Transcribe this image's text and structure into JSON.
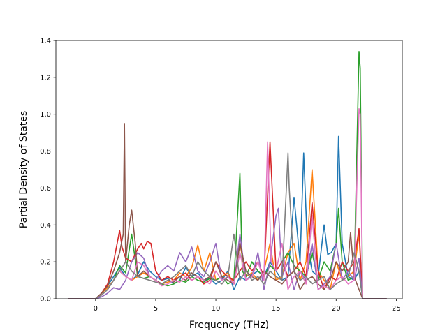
{
  "chart_data": {
    "type": "line",
    "title": "",
    "xlabel": "Frequency (THz)",
    "ylabel": "Partial Density of States",
    "xlim": [
      -3.3,
      25.5
    ],
    "ylim": [
      0,
      1.4
    ],
    "xticks": [
      0,
      5,
      10,
      15,
      20,
      25
    ],
    "xtick_labels": [
      "0",
      "5",
      "10",
      "15",
      "20",
      "25"
    ],
    "yticks": [
      0.0,
      0.2,
      0.4,
      0.6,
      0.8,
      1.0,
      1.2,
      1.4
    ],
    "ytick_labels": [
      "0.0",
      "0.2",
      "0.4",
      "0.6",
      "0.8",
      "1.0",
      "1.2",
      "1.4"
    ],
    "grid": false,
    "legend": false,
    "series": [
      {
        "color": "#1f77b4",
        "x": [
          -2.3,
          0.0,
          0.5,
          1.0,
          1.5,
          2.0,
          2.5,
          3.0,
          3.5,
          4.0,
          4.5,
          5.0,
          5.5,
          6.0,
          6.5,
          7.0,
          7.5,
          8.0,
          8.5,
          9.0,
          9.5,
          10.0,
          10.5,
          11.0,
          11.5,
          12.0,
          12.5,
          13.0,
          13.5,
          14.0,
          14.5,
          15.0,
          15.5,
          16.0,
          16.5,
          17.0,
          17.3,
          17.6,
          18.0,
          18.5,
          19.0,
          19.3,
          19.6,
          20.0,
          20.2,
          20.5,
          21.0,
          21.5,
          21.9,
          22.2,
          24.2
        ],
        "y": [
          0,
          0,
          0.03,
          0.07,
          0.12,
          0.17,
          0.12,
          0.1,
          0.13,
          0.2,
          0.15,
          0.12,
          0.1,
          0.11,
          0.08,
          0.1,
          0.17,
          0.12,
          0.14,
          0.1,
          0.11,
          0.08,
          0.1,
          0.15,
          0.05,
          0.12,
          0.1,
          0.13,
          0.15,
          0.12,
          0.2,
          0.15,
          0.1,
          0.12,
          0.55,
          0.2,
          0.79,
          0.3,
          0.15,
          0.12,
          0.4,
          0.24,
          0.25,
          0.3,
          0.88,
          0.3,
          0.12,
          0.1,
          0.15,
          0,
          0
        ]
      },
      {
        "color": "#ff7f0e",
        "x": [
          -2.3,
          0.0,
          0.5,
          1.0,
          1.5,
          2.0,
          2.5,
          3.0,
          3.5,
          4.0,
          4.5,
          5.0,
          5.5,
          6.0,
          6.5,
          7.0,
          7.5,
          8.0,
          8.5,
          9.0,
          9.5,
          10.0,
          10.5,
          11.0,
          11.5,
          12.0,
          12.5,
          13.0,
          13.5,
          14.0,
          14.5,
          15.0,
          15.5,
          16.0,
          16.5,
          17.0,
          17.5,
          18.0,
          18.5,
          19.0,
          19.5,
          20.0,
          20.5,
          21.0,
          21.5,
          21.9,
          22.2,
          24.2
        ],
        "y": [
          0,
          0,
          0.03,
          0.06,
          0.1,
          0.15,
          0.12,
          0.1,
          0.12,
          0.14,
          0.12,
          0.1,
          0.08,
          0.09,
          0.1,
          0.14,
          0.12,
          0.17,
          0.29,
          0.15,
          0.25,
          0.1,
          0.12,
          0.14,
          0.08,
          0.3,
          0.12,
          0.14,
          0.1,
          0.15,
          0.3,
          0.1,
          0.12,
          0.25,
          0.3,
          0.1,
          0.2,
          0.7,
          0.15,
          0.1,
          0.05,
          0.2,
          0.1,
          0.12,
          0.15,
          0.35,
          0,
          0
        ]
      },
      {
        "color": "#2ca02c",
        "x": [
          -2.3,
          0.0,
          0.5,
          1.0,
          1.5,
          2.0,
          2.5,
          3.0,
          3.5,
          4.0,
          4.5,
          5.0,
          5.5,
          6.0,
          6.5,
          7.0,
          7.5,
          8.0,
          8.5,
          9.0,
          9.5,
          10.0,
          10.5,
          11.0,
          11.5,
          12.0,
          12.2,
          12.5,
          13.0,
          13.5,
          14.0,
          14.5,
          15.0,
          15.5,
          16.0,
          16.5,
          17.0,
          17.5,
          18.0,
          18.5,
          19.0,
          19.5,
          20.0,
          20.2,
          20.5,
          21.0,
          21.5,
          21.9,
          22.0,
          22.2,
          24.2
        ],
        "y": [
          0,
          0,
          0.02,
          0.05,
          0.1,
          0.18,
          0.14,
          0.35,
          0.12,
          0.11,
          0.12,
          0.1,
          0.08,
          0.07,
          0.08,
          0.1,
          0.09,
          0.12,
          0.1,
          0.09,
          0.11,
          0.1,
          0.12,
          0.08,
          0.1,
          0.68,
          0.15,
          0.12,
          0.2,
          0.15,
          0.12,
          0.18,
          0.15,
          0.2,
          0.25,
          0.18,
          0.15,
          0.12,
          0.25,
          0.1,
          0.2,
          0.15,
          0.3,
          0.49,
          0.2,
          0.1,
          0.12,
          1.34,
          1.25,
          0,
          0
        ]
      },
      {
        "color": "#d62728",
        "x": [
          -2.3,
          0.0,
          0.5,
          1.0,
          1.5,
          2.0,
          2.2,
          2.5,
          3.0,
          3.5,
          3.8,
          4.0,
          4.3,
          4.6,
          5.0,
          5.5,
          6.0,
          6.5,
          7.0,
          7.5,
          8.0,
          8.5,
          9.0,
          9.5,
          10.0,
          10.5,
          11.0,
          11.5,
          12.0,
          12.5,
          13.0,
          13.5,
          14.0,
          14.5,
          15.0,
          15.5,
          16.0,
          16.5,
          17.0,
          17.5,
          18.0,
          18.5,
          19.0,
          19.5,
          20.0,
          20.5,
          21.0,
          21.5,
          21.9,
          22.2,
          24.2
        ],
        "y": [
          0,
          0,
          0.03,
          0.08,
          0.2,
          0.37,
          0.28,
          0.22,
          0.2,
          0.27,
          0.3,
          0.27,
          0.31,
          0.3,
          0.15,
          0.1,
          0.12,
          0.1,
          0.12,
          0.14,
          0.1,
          0.12,
          0.08,
          0.1,
          0.2,
          0.15,
          0.12,
          0.1,
          0.15,
          0.2,
          0.15,
          0.2,
          0.12,
          0.85,
          0.15,
          0.2,
          0.12,
          0.15,
          0.2,
          0.12,
          0.52,
          0.15,
          0.05,
          0.12,
          0.1,
          0.2,
          0.15,
          0.2,
          0.38,
          0,
          0
        ]
      },
      {
        "color": "#9467bd",
        "x": [
          -2.3,
          0.0,
          0.5,
          1.0,
          1.5,
          2.0,
          2.5,
          3.0,
          3.5,
          4.0,
          4.5,
          5.0,
          5.5,
          6.0,
          6.5,
          7.0,
          7.5,
          8.0,
          8.5,
          9.0,
          9.5,
          10.0,
          10.5,
          11.0,
          11.5,
          12.0,
          12.5,
          13.0,
          13.5,
          14.0,
          14.5,
          15.0,
          15.2,
          15.5,
          16.0,
          16.5,
          17.0,
          17.5,
          18.0,
          18.5,
          19.0,
          19.5,
          20.0,
          20.5,
          21.0,
          21.5,
          21.9,
          22.2,
          24.2
        ],
        "y": [
          0,
          0,
          0.01,
          0.03,
          0.06,
          0.05,
          0.1,
          0.2,
          0.25,
          0.22,
          0.12,
          0.1,
          0.15,
          0.18,
          0.15,
          0.25,
          0.2,
          0.28,
          0.15,
          0.12,
          0.2,
          0.3,
          0.1,
          0.12,
          0.08,
          0.35,
          0.1,
          0.12,
          0.25,
          0.05,
          0.2,
          0.45,
          0.49,
          0.12,
          0.2,
          0.05,
          0.15,
          0.1,
          0.3,
          0.05,
          0.08,
          0.12,
          0.3,
          0.1,
          0.15,
          0.1,
          0.22,
          0,
          0
        ]
      },
      {
        "color": "#8c564b",
        "x": [
          -2.3,
          0.0,
          0.5,
          1.0,
          1.5,
          2.0,
          2.3,
          2.4,
          2.5,
          2.8,
          3.0,
          3.3,
          3.5,
          4.0,
          4.5,
          5.0,
          5.5,
          6.0,
          6.5,
          7.0,
          7.5,
          8.0,
          8.5,
          9.0,
          9.5,
          10.0,
          10.5,
          11.0,
          11.5,
          12.0,
          12.5,
          13.0,
          13.5,
          14.0,
          14.5,
          15.0,
          15.5,
          16.0,
          16.5,
          17.0,
          17.5,
          18.0,
          18.5,
          19.0,
          19.5,
          20.0,
          20.5,
          21.0,
          21.2,
          21.5,
          21.9,
          22.2,
          24.2
        ],
        "y": [
          0,
          0,
          0.03,
          0.07,
          0.15,
          0.25,
          0.35,
          0.95,
          0.2,
          0.4,
          0.48,
          0.3,
          0.12,
          0.15,
          0.12,
          0.1,
          0.08,
          0.1,
          0.09,
          0.12,
          0.1,
          0.14,
          0.12,
          0.1,
          0.12,
          0.2,
          0.12,
          0.1,
          0.08,
          0.3,
          0.15,
          0.12,
          0.1,
          0.15,
          0.12,
          0.1,
          0.08,
          0.12,
          0.15,
          0.05,
          0.1,
          0.12,
          0.08,
          0.05,
          0.1,
          0.2,
          0.15,
          0.2,
          0.36,
          0.12,
          0.05,
          0,
          0
        ]
      },
      {
        "color": "#e377c2",
        "x": [
          -2.3,
          0.0,
          0.5,
          1.0,
          1.5,
          2.0,
          2.5,
          3.0,
          3.5,
          4.0,
          4.5,
          5.0,
          5.5,
          6.0,
          6.5,
          7.0,
          7.5,
          8.0,
          8.5,
          9.0,
          9.5,
          10.0,
          10.5,
          11.0,
          11.5,
          12.0,
          12.5,
          13.0,
          13.5,
          14.0,
          14.3,
          14.6,
          15.0,
          15.5,
          16.0,
          16.5,
          17.0,
          17.5,
          18.0,
          18.5,
          19.0,
          19.5,
          20.0,
          20.5,
          21.0,
          21.5,
          21.9,
          22.0,
          22.2,
          24.2
        ],
        "y": [
          0,
          0,
          0.02,
          0.05,
          0.1,
          0.15,
          0.12,
          0.1,
          0.2,
          0.18,
          0.12,
          0.1,
          0.07,
          0.08,
          0.1,
          0.09,
          0.12,
          0.1,
          0.12,
          0.1,
          0.08,
          0.15,
          0.1,
          0.12,
          0.08,
          0.25,
          0.1,
          0.12,
          0.2,
          0.1,
          0.85,
          0.2,
          0.15,
          0.3,
          0.05,
          0.12,
          0.15,
          0.08,
          0.45,
          0.05,
          0.07,
          0.05,
          0.1,
          0.12,
          0.08,
          0.1,
          1.03,
          1.0,
          0,
          0
        ]
      },
      {
        "color": "#7f7f7f",
        "x": [
          -2.3,
          0.0,
          0.5,
          1.0,
          1.5,
          2.0,
          2.5,
          3.0,
          3.5,
          4.0,
          4.5,
          5.0,
          5.5,
          6.0,
          6.5,
          7.0,
          7.5,
          8.0,
          8.5,
          9.0,
          9.5,
          10.0,
          10.5,
          11.0,
          11.5,
          12.0,
          12.5,
          13.0,
          13.5,
          14.0,
          14.5,
          15.0,
          15.5,
          16.0,
          16.1,
          16.5,
          17.0,
          17.5,
          18.0,
          18.5,
          19.0,
          19.5,
          20.0,
          20.5,
          21.0,
          21.5,
          21.9,
          22.2,
          24.2
        ],
        "y": [
          0,
          0,
          0.02,
          0.05,
          0.1,
          0.15,
          0.2,
          0.15,
          0.12,
          0.11,
          0.1,
          0.09,
          0.08,
          0.1,
          0.12,
          0.15,
          0.18,
          0.12,
          0.2,
          0.15,
          0.12,
          0.1,
          0.08,
          0.12,
          0.35,
          0.1,
          0.15,
          0.1,
          0.12,
          0.08,
          0.15,
          0.12,
          0.1,
          0.79,
          0.6,
          0.15,
          0.1,
          0.12,
          0.08,
          0.1,
          0.12,
          0.05,
          0.08,
          0.1,
          0.12,
          0.25,
          0.15,
          0,
          0
        ]
      }
    ]
  }
}
